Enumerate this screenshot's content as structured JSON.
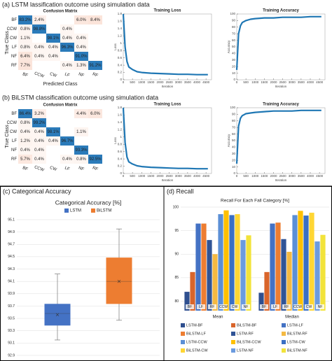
{
  "panels": [
    {
      "title": "(a) LSTM lassification outcome using simulation data"
    },
    {
      "title": "(b) BiLSTM classification outcome using simulation data"
    },
    {
      "title": "(c) Categorical Accuracy"
    },
    {
      "title": "(d) Recall"
    }
  ],
  "chart_data": [
    {
      "type": "heatmap",
      "title": "Confusion Matrix",
      "xlabel": "Predicted Class",
      "ylabel": "True Class",
      "colors": [
        "#fbe4da",
        "#2b7bba"
      ],
      "categories": [
        "BF",
        "CCW",
        "CW",
        "LF",
        "NF",
        "RF"
      ],
      "values": [
        [
          83.2,
          2.4,
          null,
          null,
          6.0,
          8.4
        ],
        [
          0.8,
          98.8,
          null,
          0.4,
          null,
          null
        ],
        [
          1.1,
          null,
          98.1,
          0.4,
          0.4,
          null
        ],
        [
          0.8,
          0.4,
          0.4,
          96.3,
          0.4,
          null
        ],
        [
          6.4,
          0.4,
          0.4,
          null,
          91.0,
          null
        ],
        [
          7.7,
          null,
          null,
          0.4,
          1.3,
          91.2
        ]
      ],
      "value_labels": [
        [
          "83.2%",
          "2.4%",
          null,
          null,
          "6.0%",
          "8.4%"
        ],
        [
          "0.8%",
          "98.8%",
          null,
          "0.4%",
          null,
          null
        ],
        [
          "1.1%",
          null,
          "98.1%",
          "0.4%",
          "0.4%",
          null
        ],
        [
          "0.8%",
          "0.4%",
          "0.4%",
          "96.3%",
          "0.4%",
          null
        ],
        [
          "6.4%",
          "0.4%",
          "0.4%",
          null,
          "91.0%",
          null
        ],
        [
          "7.7%",
          null,
          null,
          "0.4%",
          "1.3%",
          "91.2%"
        ]
      ]
    },
    {
      "type": "line",
      "title": "Training Loss",
      "xlabel": "Iteration",
      "ylabel": "Loss",
      "color": "#1f77b4",
      "x": [
        0,
        100,
        200,
        300,
        500,
        750,
        1000,
        1500,
        2000,
        2500,
        3000,
        3500,
        4000,
        4600
      ],
      "values": [
        1.8,
        0.9,
        0.5,
        0.35,
        0.28,
        0.22,
        0.2,
        0.18,
        0.17,
        0.16,
        0.15,
        0.15,
        0.14,
        0.14
      ],
      "xlim": [
        0,
        4800
      ],
      "xticks": [
        0,
        500,
        1000,
        1500,
        2000,
        2500,
        3000,
        3500,
        4000,
        4500
      ],
      "ylim": [
        0,
        1.8
      ],
      "yticks": [
        0,
        0.2,
        0.4,
        0.6,
        0.8,
        1,
        1.2,
        1.4,
        1.6,
        1.8
      ]
    },
    {
      "type": "line",
      "title": "Training Accuracy",
      "xlabel": "Iteration",
      "ylabel": "Accuracy",
      "color": "#1f77b4",
      "x": [
        0,
        100,
        200,
        300,
        500,
        750,
        1000,
        1500,
        2000,
        2500,
        3000,
        3500,
        4000,
        4600
      ],
      "values": [
        15,
        70,
        82,
        87,
        90,
        92,
        93,
        94,
        94,
        95,
        95,
        95,
        96,
        96
      ],
      "xlim": [
        0,
        4800
      ],
      "xticks": [
        0,
        500,
        1000,
        1500,
        2000,
        2500,
        3000,
        3500,
        4000,
        4500
      ],
      "ylim": [
        0,
        100
      ],
      "yticks": [
        0,
        10,
        20,
        30,
        40,
        50,
        60,
        70,
        80,
        90,
        100
      ]
    },
    {
      "type": "heatmap",
      "title": "Confusion Matrix",
      "ylabel": "True Class",
      "colors": [
        "#fbe4da",
        "#2b7bba"
      ],
      "categories": [
        "BF",
        "CCW",
        "CW",
        "LF",
        "NF",
        "RF"
      ],
      "values": [
        [
          86.4,
          3.2,
          null,
          null,
          4.4,
          6.0
        ],
        [
          0.8,
          99.2,
          null,
          null,
          null,
          null
        ],
        [
          0.4,
          0.4,
          98.1,
          null,
          1.1,
          null
        ],
        [
          1.2,
          0.4,
          0.4,
          96.7,
          null,
          null
        ],
        [
          0.4,
          0.4,
          null,
          null,
          93.3,
          null
        ],
        [
          5.7,
          0.4,
          null,
          0.4,
          0.8,
          92.5
        ]
      ],
      "value_labels": [
        [
          "86.4%",
          "3.2%",
          null,
          null,
          "4.4%",
          "6.0%"
        ],
        [
          "0.8%",
          "99.2%",
          null,
          null,
          null,
          null
        ],
        [
          "0.4%",
          "0.4%",
          "98.1%",
          null,
          "1.1%",
          null
        ],
        [
          "1.2%",
          "0.4%",
          "0.4%",
          "96.7%",
          null,
          null
        ],
        [
          "0.4%",
          "0.4%",
          null,
          null,
          "93.3%",
          null
        ],
        [
          "5.7%",
          "0.4%",
          null,
          "0.4%",
          "0.8%",
          "92.5%"
        ]
      ]
    },
    {
      "type": "line",
      "title": "Training Loss",
      "xlabel": "Iteration",
      "ylabel": "Loss",
      "color": "#1f77b4",
      "x": [
        0,
        100,
        200,
        300,
        500,
        750,
        1000,
        1500,
        2000,
        2500,
        3000,
        3500,
        4000,
        4600
      ],
      "values": [
        1.8,
        0.85,
        0.45,
        0.32,
        0.26,
        0.21,
        0.19,
        0.17,
        0.16,
        0.15,
        0.14,
        0.14,
        0.13,
        0.13
      ],
      "xlim": [
        0,
        4800
      ],
      "xticks": [
        0,
        500,
        1000,
        1500,
        2000,
        2500,
        3000,
        3500,
        4000,
        4500
      ],
      "ylim": [
        0,
        1.8
      ],
      "yticks": [
        0,
        0.2,
        0.4,
        0.6,
        0.8,
        1,
        1.2,
        1.4,
        1.6,
        1.8
      ]
    },
    {
      "type": "line",
      "title": "Training Accuracy",
      "xlabel": "Iteration",
      "ylabel": "Accuracy",
      "color": "#1f77b4",
      "x": [
        0,
        100,
        200,
        300,
        500,
        750,
        1000,
        1500,
        2000,
        2500,
        3000,
        3500,
        4000,
        4600
      ],
      "values": [
        15,
        72,
        84,
        88,
        91,
        92,
        93,
        94,
        95,
        95,
        95,
        96,
        96,
        96
      ],
      "xlim": [
        0,
        4800
      ],
      "xticks": [
        0,
        500,
        1000,
        1500,
        2000,
        2500,
        3000,
        3500,
        4000,
        4500
      ],
      "ylim": [
        0,
        100
      ],
      "yticks": [
        0,
        10,
        20,
        30,
        40,
        50,
        60,
        70,
        80,
        90,
        100
      ]
    },
    {
      "type": "box",
      "title": "Categorical Accuracy [%]",
      "grid": true,
      "series": [
        {
          "name": "LSTM",
          "color": "#4472c4",
          "min": 93.15,
          "q1": 93.39,
          "median": 93.58,
          "q3": 93.73,
          "max": 94.22,
          "mean": 93.56
        },
        {
          "name": "BiLSTM",
          "color": "#ed7d31",
          "min": 93.47,
          "q1": 93.74,
          "median": 94.1,
          "q3": 94.48,
          "max": 94.95,
          "mean": 94.1
        }
      ],
      "ylim": [
        92.9,
        95.1
      ],
      "yticks": [
        92.9,
        93.1,
        93.3,
        93.5,
        93.7,
        93.9,
        94.1,
        94.3,
        94.5,
        94.7,
        94.9,
        95.1
      ]
    },
    {
      "type": "bar",
      "title": "Recall For Each Fall Category [%]",
      "grid": true,
      "categories": [
        "Mean",
        "Median"
      ],
      "bar_labels": [
        "BF",
        "LF",
        "RF",
        "CCW",
        "CW",
        "NF"
      ],
      "series": [
        {
          "name": "LSTM-BF",
          "color": "#2f4f8f",
          "values": [
            82,
            81.8
          ]
        },
        {
          "name": "BiLSTM-BF",
          "color": "#d9652b",
          "values": [
            86.2,
            86.2
          ]
        },
        {
          "name": "LSTM-LF",
          "color": "#4472c4",
          "values": [
            96.5,
            96.5
          ]
        },
        {
          "name": "BiLSTM-LF",
          "color": "#ed7d31",
          "values": [
            96.5,
            96.7
          ]
        },
        {
          "name": "LSTM-RF",
          "color": "#305496",
          "values": [
            93,
            93.2
          ]
        },
        {
          "name": "BiLSTM-RF",
          "color": "#f4b942",
          "values": [
            90,
            90.5
          ]
        },
        {
          "name": "LSTM-CCW",
          "color": "#5b8fd6",
          "values": [
            98.5,
            98.3
          ]
        },
        {
          "name": "BiLSTM-CCW",
          "color": "#ffc000",
          "values": [
            99.3,
            99.2
          ]
        },
        {
          "name": "LSTM-CW",
          "color": "#3a6fc4",
          "values": [
            98.3,
            98.2
          ]
        },
        {
          "name": "BiLSTM-CW",
          "color": "#ffd633",
          "values": [
            98.5,
            98.8
          ]
        },
        {
          "name": "LSTM-NF",
          "color": "#6b9bdf",
          "values": [
            93,
            92.7
          ]
        },
        {
          "name": "BiLSTM-NF",
          "color": "#f2e33a",
          "values": [
            94,
            94.1
          ]
        }
      ],
      "ylim": [
        78,
        100
      ],
      "yticks": [
        80,
        85,
        90,
        95,
        100
      ]
    }
  ]
}
